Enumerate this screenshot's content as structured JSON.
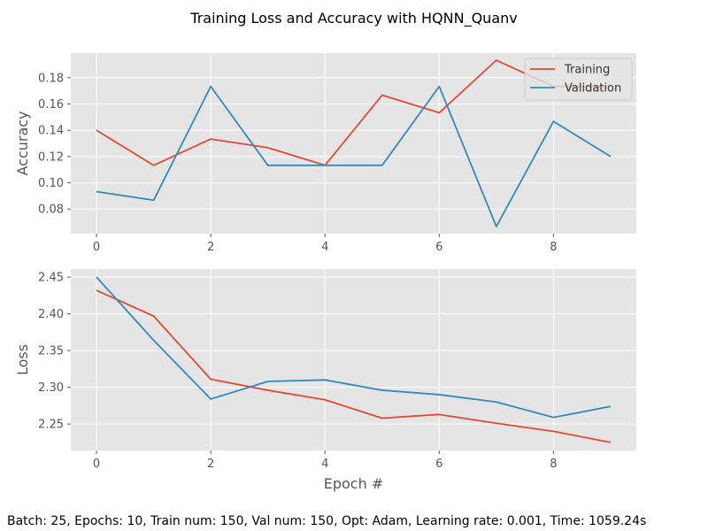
{
  "figure": {
    "title": "Training Loss and Accuracy with HQNN_Quanv",
    "caption": "Batch: 25, Epochs: 10, Train num: 150, Val num: 150, Opt: Adam, Learning rate: 0.001, Time: 1059.24s"
  },
  "colors": {
    "training": "#E24A33",
    "validation": "#348ABD",
    "panel_background": "#E5E5E5",
    "grid": "#FFFFFF"
  },
  "chart_data": [
    {
      "type": "line",
      "ylabel": "Accuracy",
      "xlabel": "",
      "grid": true,
      "legend_position": "top-right",
      "xlim": [
        -0.45,
        9.45
      ],
      "ylim": [
        0.0613,
        0.1987
      ],
      "x_ticks": [
        0,
        2,
        4,
        6,
        8
      ],
      "x_tick_labels": [
        "0",
        "2",
        "4",
        "6",
        "8"
      ],
      "y_ticks": [
        0.08,
        0.1,
        0.12,
        0.14,
        0.16,
        0.18
      ],
      "y_tick_labels": [
        "0.08",
        "0.10",
        "0.12",
        "0.14",
        "0.16",
        "0.18"
      ],
      "x": [
        0,
        1,
        2,
        3,
        4,
        5,
        6,
        7,
        8,
        9
      ],
      "series": [
        {
          "name": "Training",
          "color": "#E24A33",
          "values": [
            0.14,
            0.1133,
            0.1333,
            0.1267,
            0.1133,
            0.1667,
            0.1533,
            0.1933,
            0.1733,
            0.1733
          ]
        },
        {
          "name": "Validation",
          "color": "#348ABD",
          "values": [
            0.0933,
            0.0867,
            0.1733,
            0.1133,
            0.1133,
            0.1133,
            0.1733,
            0.0667,
            0.1467,
            0.12
          ]
        }
      ]
    },
    {
      "type": "line",
      "ylabel": "Loss",
      "xlabel": "Epoch #",
      "grid": true,
      "legend_position": "none",
      "xlim": [
        -0.45,
        9.45
      ],
      "ylim": [
        2.214,
        2.461
      ],
      "x_ticks": [
        0,
        2,
        4,
        6,
        8
      ],
      "x_tick_labels": [
        "0",
        "2",
        "4",
        "6",
        "8"
      ],
      "y_ticks": [
        2.25,
        2.3,
        2.35,
        2.4,
        2.45
      ],
      "y_tick_labels": [
        "2.25",
        "2.30",
        "2.35",
        "2.40",
        "2.45"
      ],
      "x": [
        0,
        1,
        2,
        3,
        4,
        5,
        6,
        7,
        8,
        9
      ],
      "series": [
        {
          "name": "Training",
          "color": "#E24A33",
          "values": [
            2.432,
            2.397,
            2.311,
            2.296,
            2.283,
            2.258,
            2.263,
            2.251,
            2.24,
            2.225
          ]
        },
        {
          "name": "Validation",
          "color": "#348ABD",
          "values": [
            2.45,
            2.364,
            2.284,
            2.308,
            2.31,
            2.296,
            2.29,
            2.28,
            2.259,
            2.274
          ]
        }
      ]
    }
  ]
}
